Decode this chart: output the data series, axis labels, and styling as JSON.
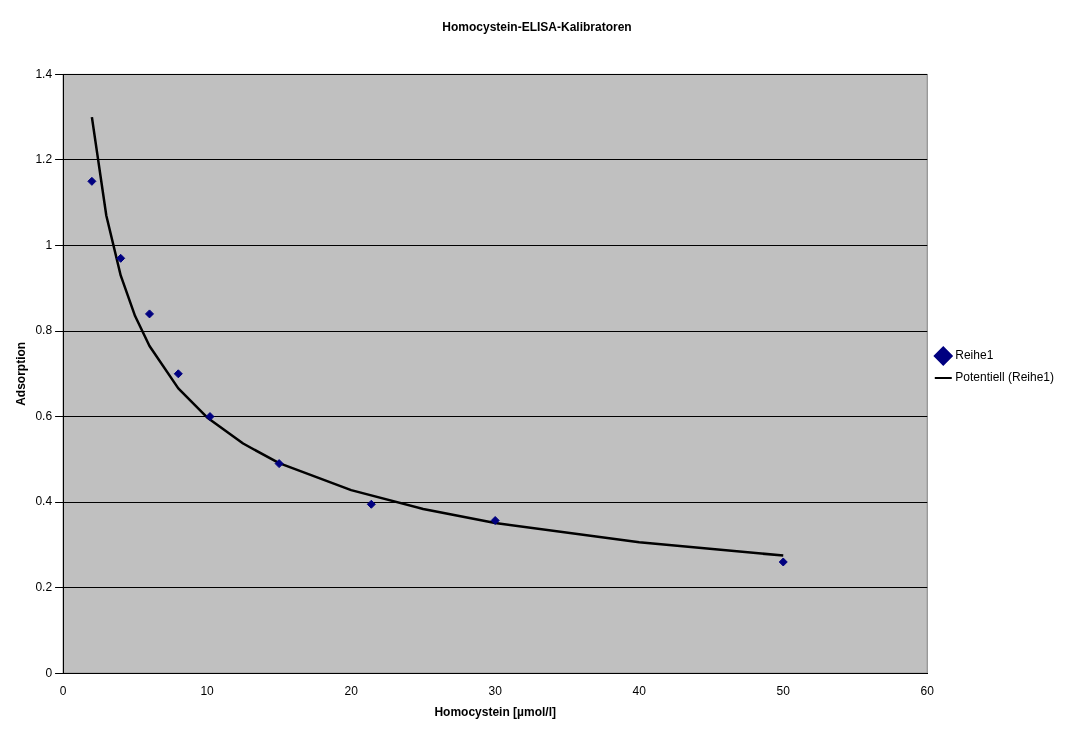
{
  "chart_data": {
    "type": "scatter",
    "title": "Homocystein-ELISA-Kalibratoren",
    "xlabel": "Homocystein [µmol/l]",
    "ylabel": "Adsorption",
    "xlim": [
      0,
      60
    ],
    "xticks": [
      0,
      10,
      20,
      30,
      40,
      50,
      60
    ],
    "ylim": [
      0,
      1.4
    ],
    "yticks": [
      0,
      0.2,
      0.4,
      0.6,
      0.8,
      1,
      1.2,
      1.4
    ],
    "grid": "y",
    "legend": "right",
    "marker": "diamond",
    "series": [
      {
        "name": "Reihe1",
        "type": "scatter",
        "color": "#000080",
        "x": [
          2,
          4,
          6,
          8,
          10.2,
          15,
          21.4,
          30,
          50
        ],
        "values": [
          1.15,
          0.97,
          0.84,
          0.7,
          0.6,
          0.49,
          0.395,
          0.357,
          0.26
        ]
      },
      {
        "name": "Potentiell (Reihe1)",
        "type": "line",
        "color": "#000000",
        "line_style": "solid",
        "marker": "none",
        "x": [
          2,
          3,
          4,
          5,
          6,
          8,
          10,
          12.5,
          15,
          20,
          25,
          30,
          40,
          50
        ],
        "values": [
          1.3,
          1.07,
          0.93,
          0.835,
          0.765,
          0.666,
          0.598,
          0.537,
          0.491,
          0.428,
          0.384,
          0.351,
          0.306,
          0.275
        ]
      }
    ]
  }
}
